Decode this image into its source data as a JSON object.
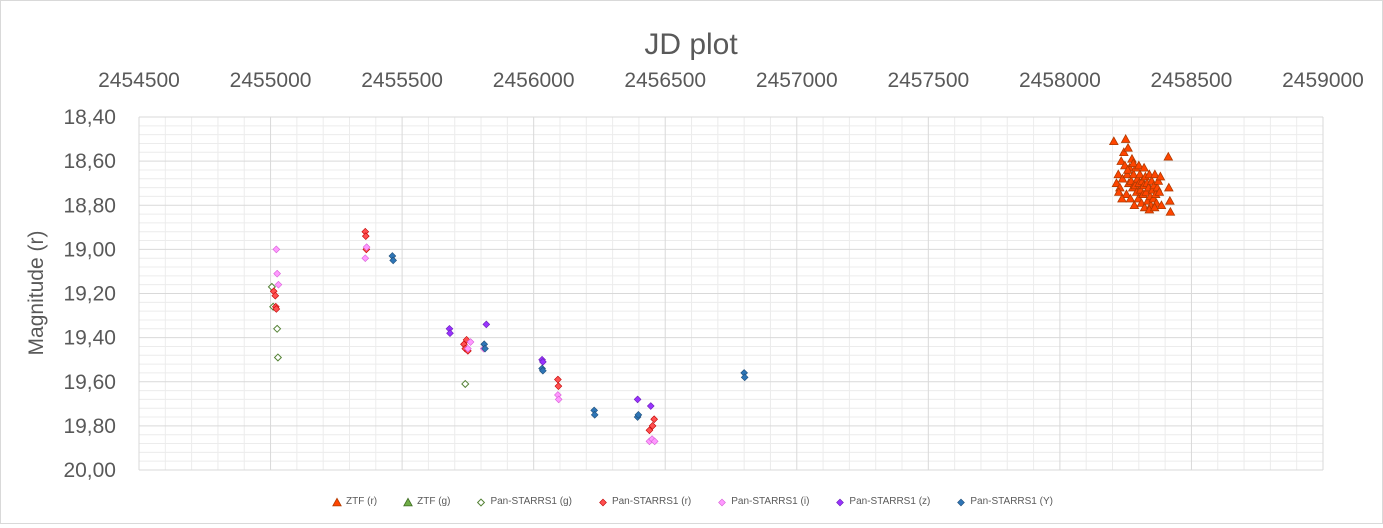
{
  "chart_data": {
    "type": "scatter",
    "title": "JD plot",
    "xlabel": "",
    "ylabel": "Magnitude (r)",
    "xlim": [
      2454500,
      2459000
    ],
    "ylim": [
      18.4,
      20.0
    ],
    "y_inverted": true,
    "x_axis_position": "top",
    "x_ticks": [
      "2454500",
      "2455000",
      "2455500",
      "2456000",
      "2456500",
      "2457000",
      "2457500",
      "2458000",
      "2458500",
      "2459000"
    ],
    "y_ticks": [
      "18,40",
      "18,60",
      "18,80",
      "19,00",
      "19,20",
      "19,40",
      "19,60",
      "19,80",
      "20,00"
    ],
    "grid": true,
    "legend_position": "bottom",
    "series": [
      {
        "name": "ZTF (r)",
        "marker": "triangle",
        "color": "#ff4500",
        "edge": "#b03a00",
        "points": [
          [
            2458205,
            18.51
          ],
          [
            2458215,
            18.7
          ],
          [
            2458222,
            18.66
          ],
          [
            2458228,
            18.72
          ],
          [
            2458233,
            18.6
          ],
          [
            2458238,
            18.68
          ],
          [
            2458243,
            18.56
          ],
          [
            2458247,
            18.62
          ],
          [
            2458250,
            18.5
          ],
          [
            2458253,
            18.75
          ],
          [
            2458256,
            18.66
          ],
          [
            2458259,
            18.54
          ],
          [
            2458262,
            18.7
          ],
          [
            2458265,
            18.63
          ],
          [
            2458268,
            18.77
          ],
          [
            2458271,
            18.69
          ],
          [
            2458274,
            18.59
          ],
          [
            2458277,
            18.72
          ],
          [
            2458280,
            18.66
          ],
          [
            2458283,
            18.8
          ],
          [
            2458286,
            18.71
          ],
          [
            2458289,
            18.63
          ],
          [
            2458292,
            18.74
          ],
          [
            2458295,
            18.68
          ],
          [
            2458298,
            18.77
          ],
          [
            2458301,
            18.7
          ],
          [
            2458304,
            18.66
          ],
          [
            2458307,
            18.73
          ],
          [
            2458310,
            18.79
          ],
          [
            2458313,
            18.69
          ],
          [
            2458316,
            18.75
          ],
          [
            2458319,
            18.71
          ],
          [
            2458322,
            18.81
          ],
          [
            2458325,
            18.67
          ],
          [
            2458328,
            18.74
          ],
          [
            2458331,
            18.7
          ],
          [
            2458334,
            18.78
          ],
          [
            2458337,
            18.72
          ],
          [
            2458340,
            18.66
          ],
          [
            2458343,
            18.76
          ],
          [
            2458346,
            18.8
          ],
          [
            2458349,
            18.69
          ],
          [
            2458352,
            18.73
          ],
          [
            2458355,
            18.77
          ],
          [
            2458358,
            18.71
          ],
          [
            2458361,
            18.66
          ],
          [
            2458364,
            18.75
          ],
          [
            2458367,
            18.79
          ],
          [
            2458370,
            18.72
          ],
          [
            2458374,
            18.69
          ],
          [
            2458378,
            18.74
          ],
          [
            2458382,
            18.67
          ],
          [
            2458386,
            18.8
          ],
          [
            2458412,
            18.58
          ],
          [
            2458414,
            18.72
          ],
          [
            2458418,
            18.78
          ],
          [
            2458420,
            18.83
          ],
          [
            2458224,
            18.74
          ],
          [
            2458236,
            18.77
          ],
          [
            2458258,
            18.64
          ],
          [
            2458279,
            18.61
          ],
          [
            2458300,
            18.62
          ],
          [
            2458320,
            18.63
          ],
          [
            2458340,
            18.82
          ],
          [
            2458360,
            18.81
          ]
        ]
      },
      {
        "name": "ZTF (g)",
        "marker": "triangle",
        "color": "#70ad47",
        "edge": "#3d6b22",
        "points": []
      },
      {
        "name": "Pan-STARRS1 (g)",
        "marker": "diamond-open",
        "color": "#a9d18e",
        "edge": "#548235",
        "points": [
          [
            2455005,
            19.17
          ],
          [
            2455010,
            19.26
          ],
          [
            2455025,
            19.36
          ],
          [
            2455028,
            19.49
          ],
          [
            2455740,
            19.61
          ]
        ]
      },
      {
        "name": "Pan-STARRS1 (r)",
        "marker": "diamond",
        "color": "#ff5050",
        "edge": "#c00000",
        "points": [
          [
            2455012,
            19.19
          ],
          [
            2455018,
            19.21
          ],
          [
            2455020,
            19.26
          ],
          [
            2455022,
            19.27
          ],
          [
            2455360,
            18.92
          ],
          [
            2455362,
            18.94
          ],
          [
            2455364,
            19.0
          ],
          [
            2455735,
            19.43
          ],
          [
            2455740,
            19.45
          ],
          [
            2455745,
            19.41
          ],
          [
            2455750,
            19.46
          ],
          [
            2456092,
            19.59
          ],
          [
            2456094,
            19.62
          ],
          [
            2456440,
            19.82
          ],
          [
            2456452,
            19.8
          ],
          [
            2456458,
            19.77
          ]
        ]
      },
      {
        "name": "Pan-STARRS1 (i)",
        "marker": "diamond",
        "color": "#ff99ff",
        "edge": "#d65ed6",
        "points": [
          [
            2455022,
            19.0
          ],
          [
            2455025,
            19.11
          ],
          [
            2455030,
            19.16
          ],
          [
            2455360,
            19.04
          ],
          [
            2455365,
            18.99
          ],
          [
            2455750,
            19.45
          ],
          [
            2455760,
            19.42
          ],
          [
            2455810,
            19.45
          ],
          [
            2456092,
            19.66
          ],
          [
            2456095,
            19.68
          ],
          [
            2456440,
            19.87
          ],
          [
            2456450,
            19.86
          ],
          [
            2456460,
            19.87
          ]
        ]
      },
      {
        "name": "Pan-STARRS1 (z)",
        "marker": "diamond",
        "color": "#9933ff",
        "edge": "#6a1fb5",
        "points": [
          [
            2455680,
            19.36
          ],
          [
            2455682,
            19.38
          ],
          [
            2455820,
            19.34
          ],
          [
            2456032,
            19.5
          ],
          [
            2456035,
            19.51
          ],
          [
            2456395,
            19.68
          ],
          [
            2456445,
            19.71
          ]
        ]
      },
      {
        "name": "Pan-STARRS1 (Y)",
        "marker": "diamond",
        "color": "#2e75b6",
        "edge": "#1f4e79",
        "points": [
          [
            2455463,
            19.03
          ],
          [
            2455466,
            19.05
          ],
          [
            2455812,
            19.43
          ],
          [
            2455815,
            19.45
          ],
          [
            2456032,
            19.54
          ],
          [
            2456035,
            19.55
          ],
          [
            2456230,
            19.73
          ],
          [
            2456232,
            19.75
          ],
          [
            2456395,
            19.76
          ],
          [
            2456398,
            19.75
          ],
          [
            2456800,
            19.56
          ],
          [
            2456802,
            19.58
          ]
        ]
      }
    ]
  }
}
